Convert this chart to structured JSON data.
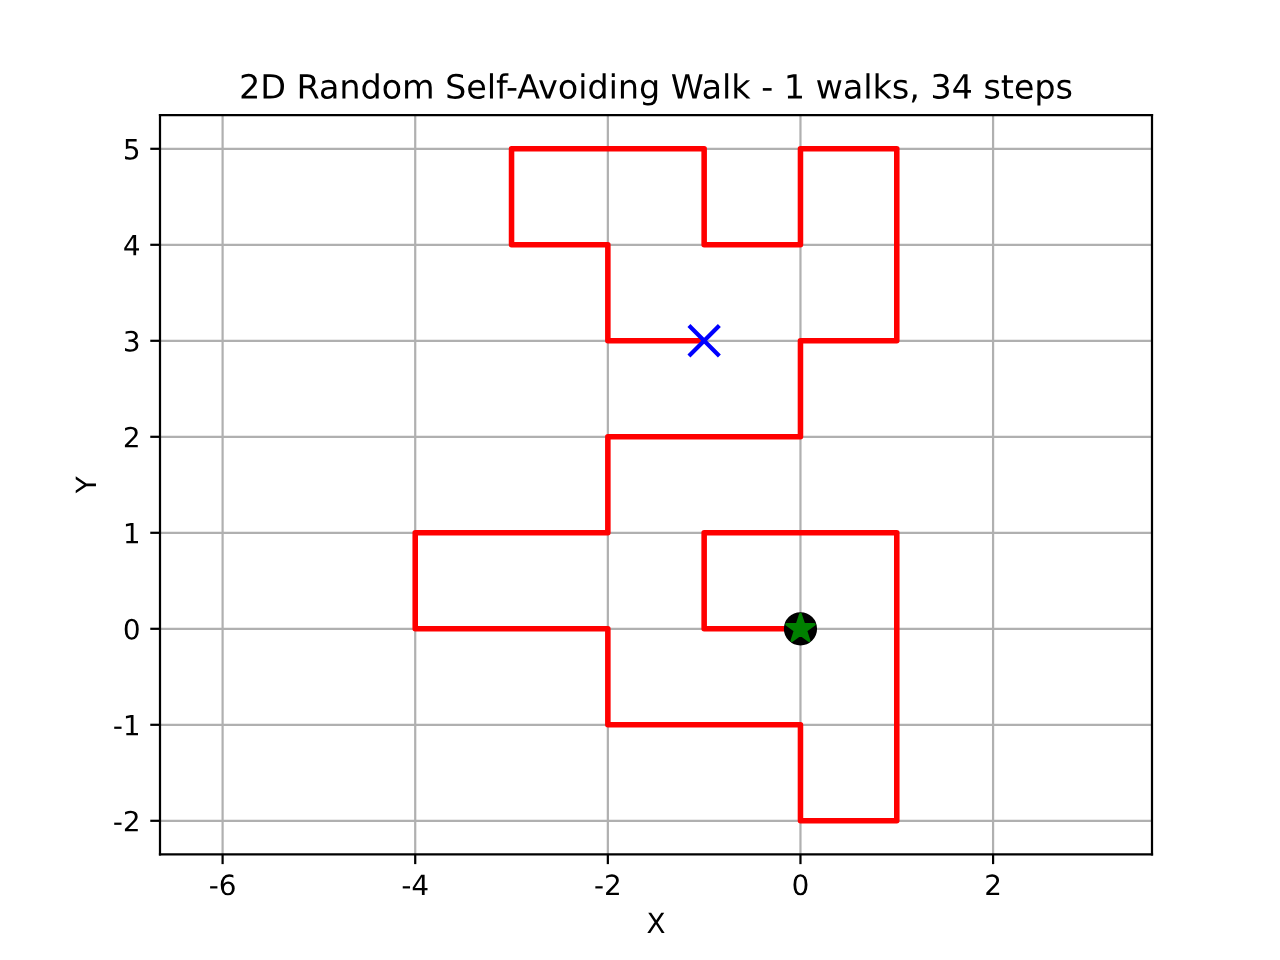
{
  "chart_data": {
    "type": "line",
    "title": "2D Random Self-Avoiding Walk - 1 walks, 34 steps",
    "xlabel": "X",
    "ylabel": "Y",
    "xlim": [
      -6.65,
      3.65
    ],
    "ylim": [
      -2.35,
      5.35
    ],
    "xticks": [
      -6,
      -4,
      -2,
      0,
      2
    ],
    "yticks": [
      -2,
      -1,
      0,
      1,
      2,
      3,
      4,
      5
    ],
    "grid": true,
    "series": [
      {
        "color": "#ff0000",
        "marker": "none",
        "line_style": "solid",
        "x": [
          0,
          -1,
          -1,
          0,
          1,
          1,
          1,
          1,
          0,
          0,
          -1,
          -2,
          -2,
          -3,
          -4,
          -4,
          -3,
          -2,
          -2,
          -1,
          0,
          0,
          1,
          1,
          1,
          0,
          0,
          -1,
          -1,
          -2,
          -3,
          -3,
          -2,
          -2,
          -1
        ],
        "values": [
          0,
          0,
          1,
          1,
          1,
          0,
          -1,
          -2,
          -2,
          -1,
          -1,
          -1,
          0,
          0,
          0,
          1,
          1,
          1,
          2,
          2,
          2,
          3,
          3,
          4,
          5,
          5,
          4,
          4,
          5,
          5,
          5,
          4,
          4,
          3,
          3
        ]
      },
      {
        "type": "scatter",
        "color": "#000000",
        "marker": "circle",
        "x": [
          0
        ],
        "values": [
          0
        ]
      },
      {
        "type": "scatter",
        "color": "#008000",
        "marker": "star",
        "x": [
          0
        ],
        "values": [
          0
        ]
      },
      {
        "type": "scatter",
        "color": "#0000ff",
        "marker": "cross",
        "x": [
          -1
        ],
        "values": [
          3
        ]
      }
    ]
  }
}
